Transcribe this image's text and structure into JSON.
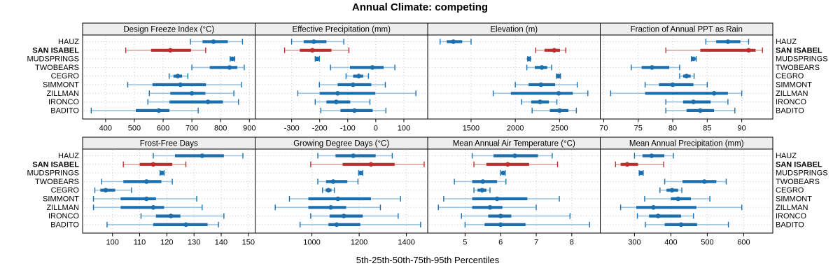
{
  "title": "Annual Climate: competing",
  "caption": "5th-25th-50th-75th-95th Percentiles",
  "colors": {
    "normal": "#1C6FAE",
    "normal_light": "#9CC3DF",
    "highlight": "#BE2D2D",
    "highlight_light": "#DCA2A2",
    "strip_bg": "#EDEDED",
    "panel_border": "#000000",
    "grid": "#C9C9C9",
    "text": "#000000"
  },
  "chart_data": {
    "type": "dotplot",
    "percentile_labels": [
      "5th",
      "25th",
      "50th",
      "75th",
      "95th"
    ],
    "stations": [
      "HAUZ",
      "SAN ISABEL",
      "MUDSPRINGS",
      "TWOBEARS",
      "CEGRO",
      "SIMMONT",
      "ZILLMAN",
      "IRONCO",
      "BADITO"
    ],
    "highlight_station": "SAN ISABEL",
    "legend_position": "none",
    "grid": "dotted",
    "panels": [
      {
        "title": "Design Freeze Index (°C)",
        "row": 0,
        "col": 0,
        "xlim": [
          320,
          920
        ],
        "ticks": [
          400,
          500,
          600,
          700,
          800,
          900
        ],
        "values": [
          [
            695,
            737,
            775,
            825,
            876
          ],
          [
            470,
            558,
            625,
            697,
            748
          ],
          [
            833,
            838,
            841,
            845,
            849
          ],
          [
            700,
            762,
            831,
            858,
            882
          ],
          [
            621,
            636,
            651,
            666,
            686
          ],
          [
            477,
            563,
            660,
            749,
            872
          ],
          [
            552,
            625,
            700,
            747,
            846
          ],
          [
            547,
            622,
            756,
            808,
            862
          ],
          [
            350,
            505,
            585,
            622,
            722
          ]
        ]
      },
      {
        "title": "Effective Precipitation (mm)",
        "row": 0,
        "col": 1,
        "xlim": [
          -430,
          185
        ],
        "ticks": [
          -300,
          -200,
          -100,
          0,
          100
        ],
        "values": [
          [
            -300,
            -257,
            -221,
            -176,
            -114
          ],
          [
            -325,
            -271,
            -226,
            -158,
            -96
          ],
          [
            -216,
            -212,
            -209,
            -205,
            -201
          ],
          [
            -161,
            -92,
            -12,
            28,
            68
          ],
          [
            -106,
            -81,
            -61,
            -45,
            -26
          ],
          [
            -201,
            -136,
            -81,
            -16,
            34
          ],
          [
            -278,
            -200,
            -136,
            -2,
            143
          ],
          [
            -216,
            -176,
            -141,
            -91,
            -21
          ],
          [
            -196,
            -126,
            -76,
            -11,
            36
          ]
        ]
      },
      {
        "title": "Elevation (m)",
        "row": 0,
        "col": 2,
        "xlim": [
          1010,
          2960
        ],
        "ticks": [
          1500,
          2000,
          2500
        ],
        "values": [
          [
            1150,
            1225,
            1300,
            1400,
            1500
          ],
          [
            2230,
            2330,
            2440,
            2505,
            2570
          ],
          [
            2140,
            2148,
            2155,
            2162,
            2170
          ],
          [
            2130,
            2220,
            2300,
            2360,
            2410
          ],
          [
            2465,
            2478,
            2488,
            2498,
            2510
          ],
          [
            2000,
            2150,
            2290,
            2450,
            2700
          ],
          [
            1750,
            1950,
            2490,
            2650,
            2820
          ],
          [
            2070,
            2180,
            2280,
            2380,
            2470
          ],
          [
            2190,
            2390,
            2500,
            2600,
            2690
          ]
        ]
      },
      {
        "title": "Fraction of Annual PPT as Rain",
        "row": 0,
        "col": 3,
        "xlim": [
          69.5,
          94.5
        ],
        "ticks": [
          70,
          75,
          80,
          85,
          90
        ],
        "values": [
          [
            84.8,
            86.3,
            88,
            89.8,
            91
          ],
          [
            79,
            84,
            91,
            92,
            93
          ],
          [
            82.7,
            82.9,
            83,
            83.2,
            83.4
          ],
          [
            74,
            75.5,
            77,
            79.5,
            81
          ],
          [
            81,
            81.5,
            82,
            82.6,
            83.1
          ],
          [
            76,
            78,
            80,
            83,
            85
          ],
          [
            71,
            76,
            86,
            88,
            90
          ],
          [
            79,
            81.5,
            83,
            85.5,
            88
          ],
          [
            79,
            82,
            84,
            86,
            89
          ]
        ]
      },
      {
        "title": "Frost-Free Days",
        "row": 1,
        "col": 0,
        "xlim": [
          89,
          152.5
        ],
        "ticks": [
          100,
          110,
          120,
          130,
          140,
          150
        ],
        "values": [
          [
            115,
            123,
            133,
            141,
            148
          ],
          [
            104,
            110,
            115,
            122,
            127
          ],
          [
            117.5,
            117.8,
            118.2,
            118.6,
            119
          ],
          [
            96,
            104,
            112.5,
            118,
            122
          ],
          [
            93.5,
            95.5,
            97.5,
            101,
            107
          ],
          [
            93,
            103,
            112.5,
            116,
            131
          ],
          [
            93,
            103,
            115,
            119,
            133
          ],
          [
            110.5,
            116,
            121.5,
            125,
            141
          ],
          [
            98,
            115,
            127,
            135,
            139
          ]
        ]
      },
      {
        "title": "Growing Degree Days (°C)",
        "row": 1,
        "col": 1,
        "xlim": [
          760,
          1490
        ],
        "ticks": [
          1000,
          1200,
          1400
        ],
        "values": [
          [
            1025,
            1100,
            1175,
            1270,
            1340
          ],
          [
            995,
            1130,
            1250,
            1350,
            1475
          ],
          [
            1198,
            1203,
            1207,
            1211,
            1215
          ],
          [
            1025,
            1060,
            1090,
            1150,
            1195
          ],
          [
            1045,
            1058,
            1070,
            1083,
            1095
          ],
          [
            905,
            985,
            1110,
            1250,
            1375
          ],
          [
            845,
            985,
            1080,
            1145,
            1290
          ],
          [
            995,
            1075,
            1135,
            1215,
            1365
          ],
          [
            950,
            1070,
            1105,
            1205,
            1460
          ]
        ]
      },
      {
        "title": "Mean Annual Air Temperature (°C)",
        "row": 1,
        "col": 2,
        "xlim": [
          3.95,
          8.8
        ],
        "ticks": [
          5,
          6,
          7,
          8
        ],
        "values": [
          [
            5.2,
            5.8,
            6.4,
            7.05,
            7.45
          ],
          [
            5.25,
            5.6,
            6.2,
            6.8,
            7.6
          ],
          [
            6.0,
            6.03,
            6.07,
            6.1,
            6.13
          ],
          [
            4.7,
            5.2,
            5.5,
            5.9,
            6.15
          ],
          [
            5.25,
            5.35,
            5.48,
            5.6,
            5.7
          ],
          [
            4.4,
            5.2,
            5.9,
            6.75,
            7.65
          ],
          [
            4.25,
            5.2,
            5.7,
            6.05,
            7.0
          ],
          [
            4.9,
            5.65,
            6.0,
            6.3,
            7.95
          ],
          [
            5.0,
            5.55,
            6.0,
            6.7,
            8.5
          ]
        ]
      },
      {
        "title": "Mean Annual Precipitation (mm)",
        "row": 1,
        "col": 3,
        "xlim": [
          206,
          680
        ],
        "ticks": [
          300,
          400,
          500,
          600
        ],
        "values": [
          [
            300,
            322,
            347,
            382,
            407
          ],
          [
            248,
            262,
            280,
            310,
            380
          ],
          [
            313,
            316,
            318,
            321,
            324
          ],
          [
            383,
            432,
            492,
            525,
            552
          ],
          [
            370,
            388,
            403,
            420,
            430
          ],
          [
            328,
            400,
            420,
            455,
            507
          ],
          [
            262,
            305,
            352,
            470,
            595
          ],
          [
            308,
            340,
            365,
            428,
            462
          ],
          [
            330,
            383,
            428,
            472,
            558
          ]
        ]
      }
    ]
  }
}
